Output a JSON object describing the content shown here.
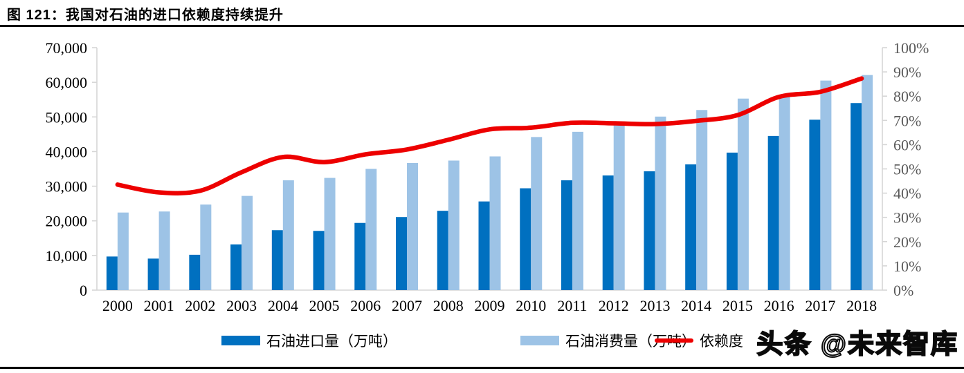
{
  "header": {
    "title": "图 121：我国对石油的进口依赖度持续提升"
  },
  "watermark": {
    "text": "头条 @未来智库"
  },
  "legend": {
    "items": [
      {
        "label": "石油进口量（万吨）",
        "type": "bar",
        "color": "#0070C0"
      },
      {
        "label": "石油消费量（万吨）",
        "type": "bar",
        "color": "#9DC3E6"
      },
      {
        "label": "依赖度",
        "type": "line",
        "color": "#ED0000"
      }
    ]
  },
  "chart_data": {
    "type": "bar",
    "subtype": "combo-bar-line",
    "title": "我国对石油的进口依赖度持续提升",
    "categories": [
      "2000",
      "2001",
      "2002",
      "2003",
      "2004",
      "2005",
      "2006",
      "2007",
      "2008",
      "2009",
      "2010",
      "2011",
      "2012",
      "2013",
      "2014",
      "2015",
      "2016",
      "2017",
      "2018"
    ],
    "series": [
      {
        "name": "石油进口量（万吨）",
        "type": "bar",
        "axis": "left",
        "color": "#0070C0",
        "values": [
          9700,
          9100,
          10200,
          13200,
          17300,
          17100,
          19400,
          21100,
          22900,
          25600,
          29400,
          31700,
          33100,
          34300,
          36300,
          39700,
          44500,
          49200,
          54000
        ]
      },
      {
        "name": "石油消费量（万吨）",
        "type": "bar",
        "axis": "left",
        "color": "#9DC3E6",
        "values": [
          22400,
          22700,
          24700,
          27200,
          31700,
          32400,
          35000,
          36700,
          37400,
          38600,
          44200,
          45700,
          48100,
          50100,
          52000,
          55300,
          56000,
          60500,
          62100
        ]
      },
      {
        "name": "依赖度",
        "type": "line",
        "axis": "right",
        "color": "#ED0000",
        "values": [
          43.5,
          40.3,
          41.0,
          48.6,
          54.9,
          52.8,
          56.0,
          58.0,
          62.0,
          66.3,
          67.0,
          69.0,
          68.8,
          68.5,
          69.8,
          72.2,
          79.7,
          81.8,
          87.3
        ]
      }
    ],
    "left_axis": {
      "min": 0,
      "max": 70000,
      "step": 10000,
      "tick_labels": [
        "0",
        "10,000",
        "20,000",
        "30,000",
        "40,000",
        "50,000",
        "60,000",
        "70,000"
      ]
    },
    "right_axis": {
      "min": 0,
      "max": 100,
      "step": 10,
      "tick_labels": [
        "0%",
        "10%",
        "20%",
        "30%",
        "40%",
        "50%",
        "60%",
        "70%",
        "80%",
        "90%",
        "100%"
      ]
    },
    "grid": false,
    "legend_position": "bottom",
    "axis_line_color": "#D6D6D6",
    "left_label_color": "#000000",
    "right_label_color": "#595959",
    "x_label_color": "#000000"
  }
}
